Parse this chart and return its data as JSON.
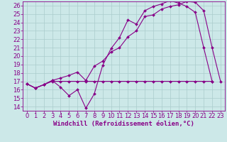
{
  "background_color": "#cce8e8",
  "grid_color": "#aacccc",
  "line_color": "#880088",
  "xlabel": "Windchill (Refroidissement éolien,°C)",
  "xlabel_fontsize": 6.5,
  "tick_fontsize": 6,
  "xlim": [
    -0.5,
    23.5
  ],
  "ylim": [
    13.5,
    26.5
  ],
  "xticks": [
    0,
    1,
    2,
    3,
    4,
    5,
    6,
    7,
    8,
    9,
    10,
    11,
    12,
    13,
    14,
    15,
    16,
    17,
    18,
    19,
    20,
    21,
    22,
    23
  ],
  "yticks": [
    14,
    15,
    16,
    17,
    18,
    19,
    20,
    21,
    22,
    23,
    24,
    25,
    26
  ],
  "line1_x": [
    0,
    1,
    2,
    3,
    4,
    5,
    6,
    7,
    8,
    9,
    10,
    11,
    12,
    13,
    14,
    15,
    16,
    17,
    18,
    19,
    20,
    21,
    22
  ],
  "line1_y": [
    16.7,
    16.2,
    16.6,
    17.1,
    16.3,
    15.3,
    16.0,
    13.8,
    15.5,
    18.9,
    20.9,
    22.2,
    24.3,
    23.8,
    25.4,
    25.9,
    26.2,
    26.6,
    26.3,
    25.9,
    25.2,
    21.0,
    17.0
  ],
  "line2_x": [
    0,
    1,
    2,
    3,
    4,
    5,
    6,
    7,
    8,
    9,
    10,
    11,
    12,
    13,
    14,
    15,
    16,
    17,
    18,
    19,
    20,
    21,
    22
  ],
  "line2_y": [
    16.7,
    16.2,
    16.6,
    17.0,
    17.0,
    17.0,
    17.0,
    17.0,
    17.0,
    17.0,
    17.0,
    17.0,
    17.0,
    17.0,
    17.0,
    17.0,
    17.0,
    17.0,
    17.0,
    17.0,
    17.0,
    17.0,
    17.0
  ],
  "line3_x": [
    0,
    1,
    2,
    3,
    4,
    5,
    6,
    7,
    8,
    9,
    10,
    11,
    12,
    13,
    14,
    15,
    16,
    17,
    18,
    19,
    20,
    21,
    22,
    23
  ],
  "line3_y": [
    16.7,
    16.2,
    16.6,
    17.1,
    17.4,
    17.7,
    18.1,
    17.1,
    18.8,
    19.4,
    20.5,
    21.0,
    22.3,
    23.0,
    24.7,
    24.9,
    25.6,
    25.9,
    26.1,
    26.5,
    26.4,
    25.4,
    21.0,
    17.0
  ]
}
